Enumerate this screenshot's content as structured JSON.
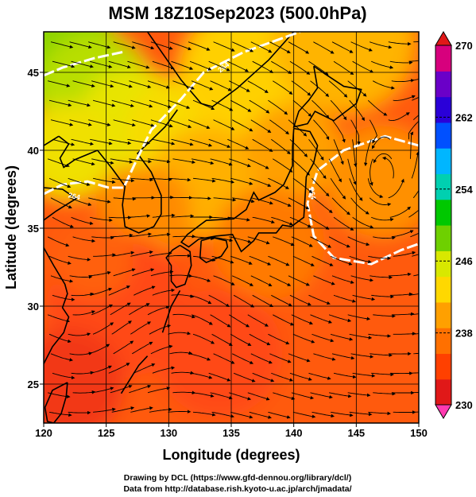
{
  "chart_data": {
    "type": "heatmap",
    "title": "MSM 18Z10Sep2023 (500.0hPa)",
    "xlabel": "Longitude (degrees)",
    "ylabel": "Latitude  (degrees)",
    "xlim": [
      120,
      150
    ],
    "ylim": [
      22.5,
      47.6
    ],
    "x_ticks": [
      120,
      125,
      130,
      135,
      140,
      145,
      150
    ],
    "y_ticks": [
      25,
      30,
      35,
      40,
      45
    ],
    "grid": true,
    "colorbar": {
      "min": 230,
      "max": 270,
      "ticks": [
        230,
        238,
        246,
        254,
        262,
        270
      ],
      "colors": [
        "#d7007d",
        "#6a00c8",
        "#2a00d8",
        "#0050ff",
        "#00b6ff",
        "#00d0b0",
        "#00c800",
        "#6ed000",
        "#d8e800",
        "#ffd800",
        "#ffa000",
        "#ff7000",
        "#ff4000",
        "#e01818"
      ]
    },
    "contour_labels": [
      "264",
      "264",
      "264"
    ],
    "vortex_center": {
      "lon": 147.2,
      "lat": 37.3
    }
  },
  "footer": {
    "line1": "Drawing by DCL (https://www.gfd-dennou.org/library/dcl/)",
    "line2": "Data from http://database.rish.kyoto-u.ac.jp/arch/jmadata/"
  }
}
